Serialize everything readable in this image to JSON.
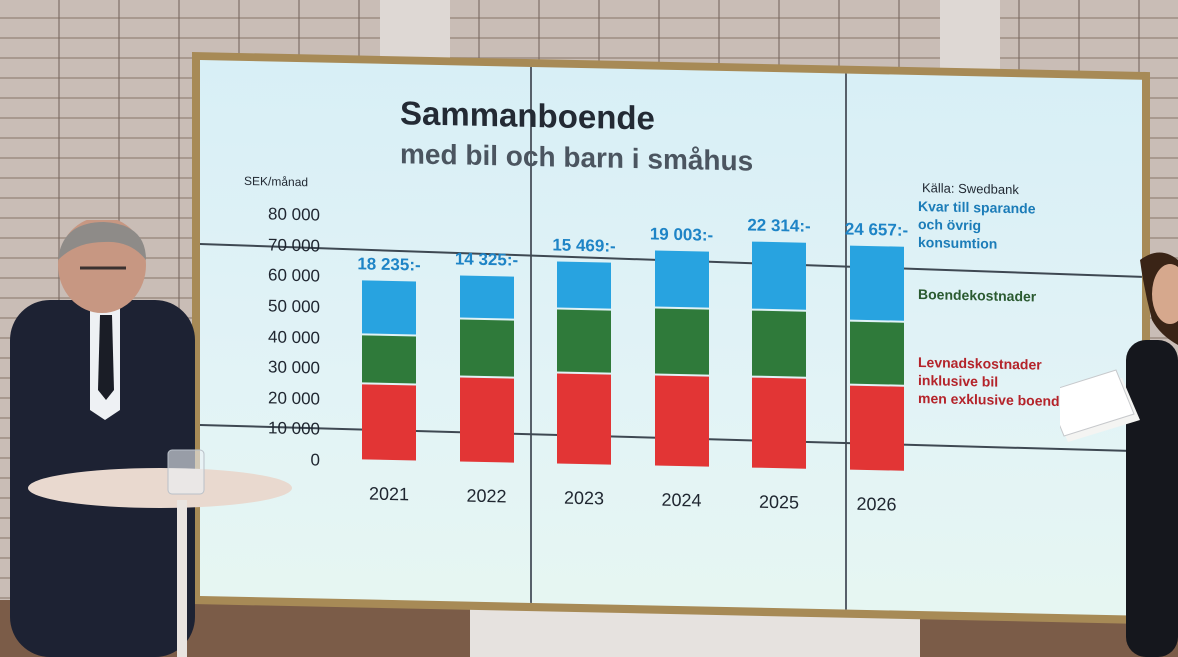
{
  "chart_data": {
    "type": "bar",
    "stacked": true,
    "title": "Sammanboende",
    "subtitle": "med bil och barn i småhus",
    "ylabel": "SEK/månad",
    "source": "Källa: Swedbank",
    "ylim": [
      0,
      80000
    ],
    "yticks": [
      "80 000",
      "70 000",
      "60 000",
      "50 000",
      "40 000",
      "30 000",
      "20 000",
      "10 000",
      "0"
    ],
    "ytick_values": [
      80000,
      70000,
      60000,
      50000,
      40000,
      30000,
      20000,
      10000,
      0
    ],
    "categories": [
      "2021",
      "2022",
      "2023",
      "2024",
      "2025",
      "2026"
    ],
    "top_labels": [
      "18 235:-",
      "14 325:-",
      "15 469:-",
      "19 003:-",
      "22 314:-",
      "24 657:-"
    ],
    "series": [
      {
        "name": "Levnadskostnader\ninklusive bil\nmen exklusive boende",
        "color": "#e23535",
        "legend_color": "#b4232a",
        "values": [
          25000,
          28000,
          30000,
          30000,
          30000,
          28000
        ]
      },
      {
        "name": "Boendekostnader",
        "color": "#2f7a3a",
        "legend_color": "#2a5a30",
        "values": [
          16000,
          19000,
          21000,
          22000,
          22000,
          21000
        ]
      },
      {
        "name": "Kvar till sparande\noch övrig\nkonsumtion",
        "color": "#28a3e0",
        "legend_color": "#1b7cb8",
        "values": [
          18235,
          14325,
          15469,
          19003,
          22314,
          24657
        ]
      }
    ],
    "grid": false,
    "legend_position": "right"
  }
}
